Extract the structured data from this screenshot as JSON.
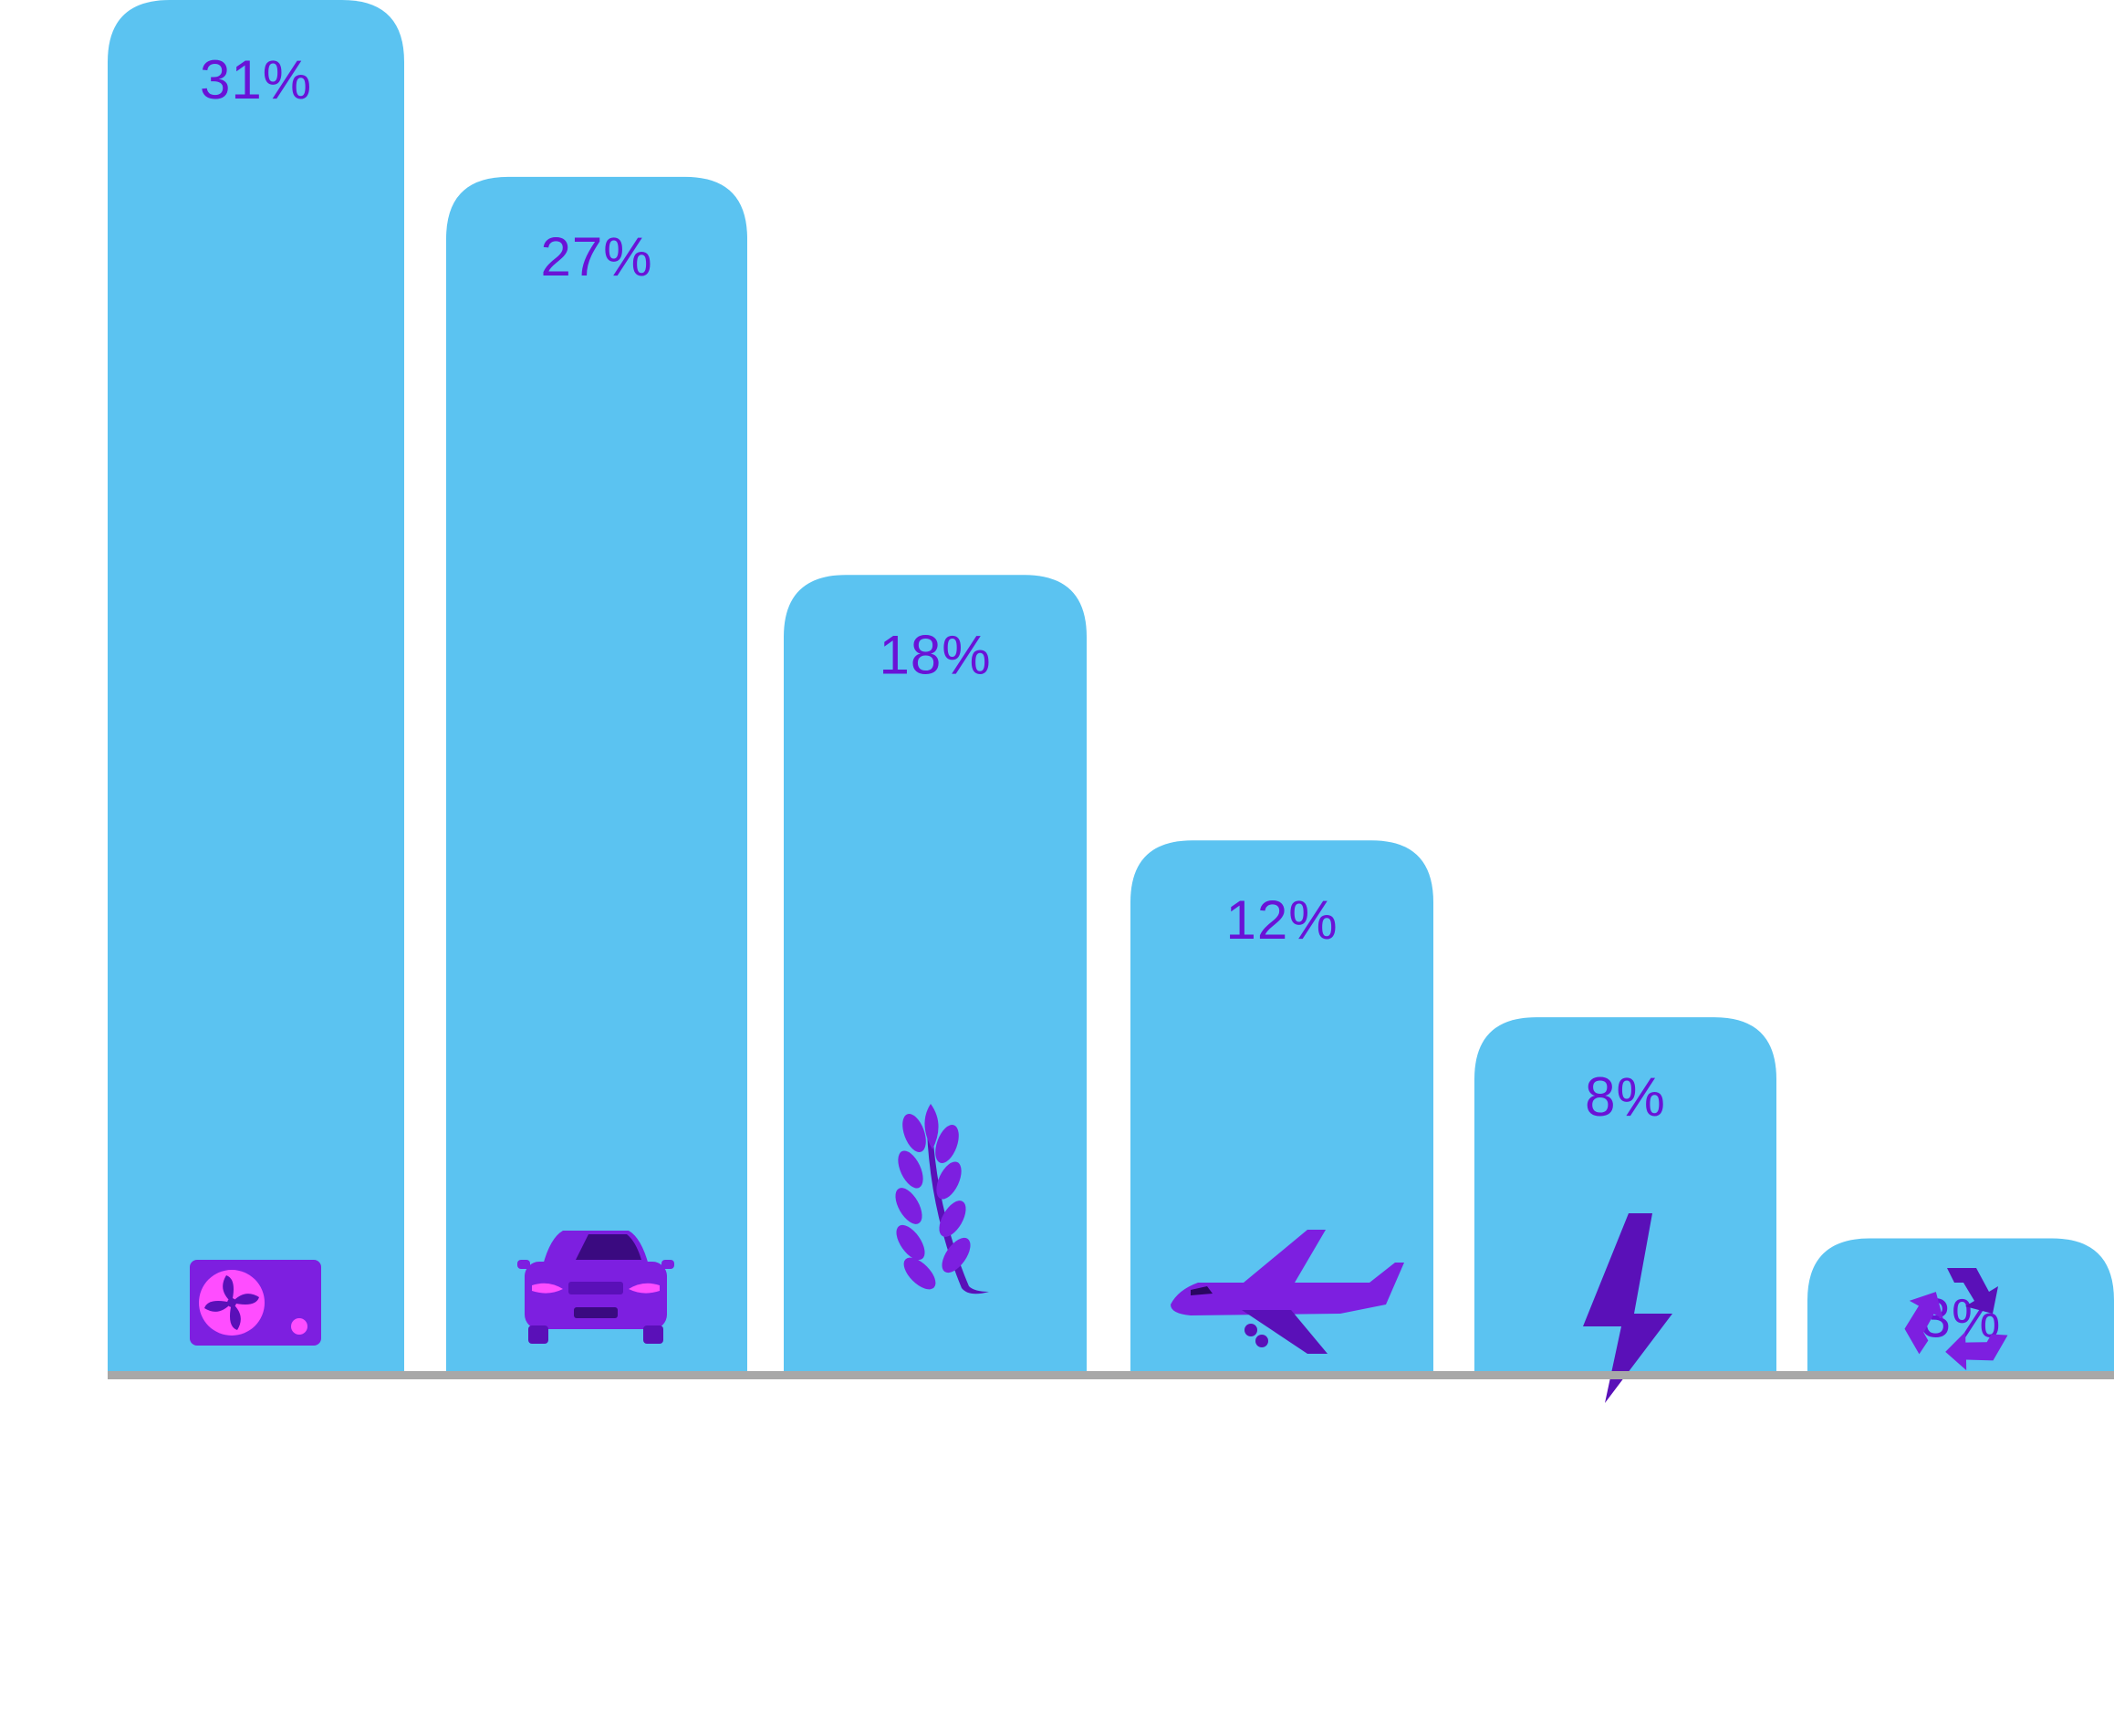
{
  "chart_data": {
    "type": "bar",
    "categories": [
      "",
      "",
      "",
      "",
      "",
      ""
    ],
    "values": [
      31,
      27,
      18,
      12,
      8,
      3
    ],
    "data_labels": [
      "31%",
      "27%",
      "18%",
      "12%",
      "8%",
      "3%"
    ],
    "icons": [
      "fan-unit-icon",
      "car-icon",
      "wheat-icon",
      "airplane-icon",
      "lightning-icon",
      "recycle-icon"
    ],
    "title": "",
    "xlabel": "",
    "ylabel": "",
    "ylim": [
      0,
      31
    ],
    "grid": false,
    "legend": "none"
  },
  "colors": {
    "bar": "#5bc3f1",
    "label": "#6a12d6",
    "icon_dark": "#5a10b8",
    "icon_mid": "#7d1fe0",
    "icon_light": "#ff4dff",
    "baseline": "#a8a8a8"
  }
}
